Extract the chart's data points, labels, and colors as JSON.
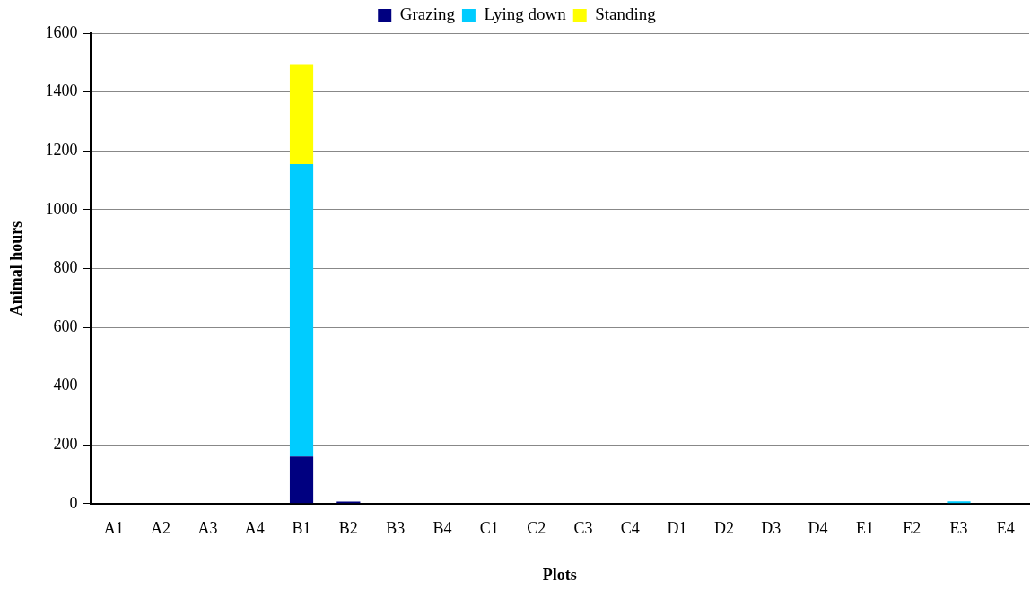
{
  "chart_data": {
    "type": "bar",
    "stacked": true,
    "xlabel": "Plots",
    "ylabel": "Animal hours",
    "categories": [
      "A1",
      "A2",
      "A3",
      "A4",
      "B1",
      "B2",
      "B3",
      "B4",
      "C1",
      "C2",
      "C3",
      "C4",
      "D1",
      "D2",
      "D3",
      "D4",
      "E1",
      "E2",
      "E3",
      "E4"
    ],
    "series": [
      {
        "name": "Grazing",
        "color": "#000080",
        "values": [
          0,
          0,
          0,
          0,
          160,
          7,
          0,
          0,
          0,
          0,
          0,
          0,
          0,
          0,
          0,
          0,
          0,
          0,
          0,
          0
        ]
      },
      {
        "name": "Lying down",
        "color": "#00ccff",
        "values": [
          0,
          0,
          0,
          0,
          995,
          0,
          0,
          0,
          0,
          0,
          0,
          0,
          0,
          0,
          0,
          0,
          0,
          0,
          8,
          0
        ]
      },
      {
        "name": "Standing",
        "color": "#ffff00",
        "values": [
          0,
          0,
          0,
          0,
          340,
          0,
          0,
          0,
          0,
          0,
          0,
          0,
          0,
          0,
          0,
          0,
          0,
          0,
          0,
          0
        ]
      }
    ],
    "ylim": [
      0,
      1600
    ],
    "yticks": [
      0,
      200,
      400,
      600,
      800,
      1000,
      1200,
      1400,
      1600
    ],
    "grid": "y",
    "legend": "top"
  }
}
